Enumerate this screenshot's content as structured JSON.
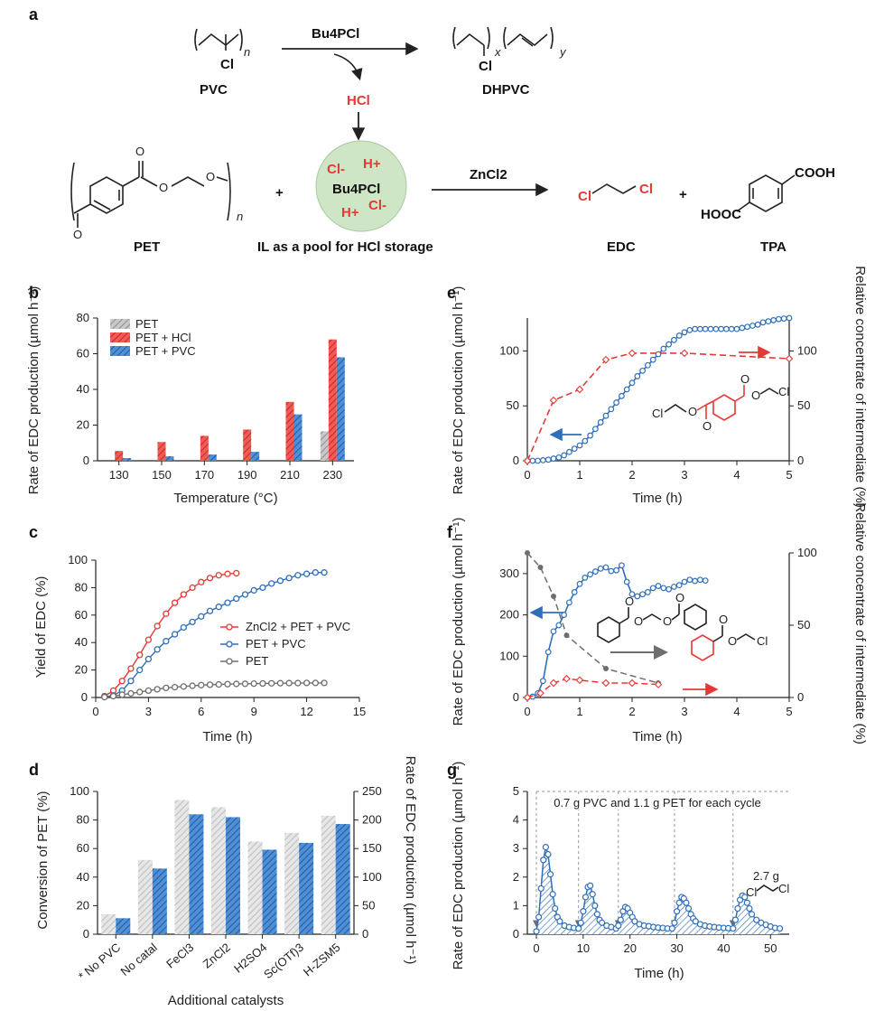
{
  "panel_labels": [
    "a",
    "b",
    "c",
    "d",
    "e",
    "f",
    "g"
  ],
  "scheme": {
    "pvc_label": "PVC",
    "dhpvc_label": "DHPVC",
    "reagent_top": "Bu4PCl",
    "hcl": "HCl",
    "pet_label": "PET",
    "il_center": "Bu4PCl",
    "il_caption": "IL as a pool for HCl storage",
    "zncl2": "ZnCl2",
    "edc_label": "EDC",
    "tpa_label": "TPA",
    "cl": "Cl",
    "h_plus": "H+",
    "cl_minus": "Cl-",
    "cooh": "COOH",
    "hooc": "HOOC",
    "plus": "+",
    "n": "n",
    "x": "x",
    "y": "y",
    "o": "O"
  },
  "colors": {
    "red": "#e53935",
    "blue": "#2f6fba",
    "grey": "#b5b5b5",
    "dark_grey": "#6e6e6e",
    "il_circle": "#cfe6c6"
  },
  "chart_data": [
    {
      "id": "b",
      "type": "bar",
      "xlabel": "Temperature (°C)",
      "ylabel": "Rate of EDC production (µmol h⁻¹)",
      "ylim": [
        0,
        80
      ],
      "yticks": [
        0,
        20,
        40,
        60,
        80
      ],
      "categories": [
        "130",
        "150",
        "170",
        "190",
        "210",
        "230"
      ],
      "series": [
        {
          "name": "PET",
          "color": "grey",
          "values": [
            0,
            0,
            0,
            0,
            0,
            16.5
          ]
        },
        {
          "name": "PET + HCl",
          "color": "red",
          "values": [
            5.5,
            10.5,
            14,
            17.5,
            33,
            68
          ]
        },
        {
          "name": "PET + PVC",
          "color": "blue",
          "values": [
            1.5,
            2.5,
            3.5,
            5,
            26,
            58
          ]
        }
      ],
      "legend": "top-left"
    },
    {
      "id": "c",
      "type": "line",
      "xlabel": "Time (h)",
      "ylabel": "Yield of EDC (%)",
      "xlim": [
        0,
        15
      ],
      "ylim": [
        0,
        100
      ],
      "xticks": [
        0,
        3,
        6,
        9,
        12,
        15
      ],
      "yticks": [
        0,
        20,
        40,
        60,
        80,
        100
      ],
      "series": [
        {
          "name": "ZnCl2 + PET + PVC",
          "color": "red",
          "x": [
            0.5,
            1,
            1.5,
            2,
            2.5,
            3,
            3.5,
            4,
            4.5,
            5,
            5.5,
            6,
            6.5,
            7,
            7.5,
            8
          ],
          "y": [
            1,
            5,
            12,
            21,
            31,
            42,
            52,
            61,
            69,
            75,
            80,
            84,
            87,
            89,
            90,
            90.5
          ]
        },
        {
          "name": "PET + PVC",
          "color": "blue",
          "x": [
            0.5,
            1,
            1.5,
            2,
            2.5,
            3,
            3.5,
            4,
            4.5,
            5,
            5.5,
            6,
            6.5,
            7,
            7.5,
            8,
            8.5,
            9,
            9.5,
            10,
            10.5,
            11,
            11.5,
            12,
            12.5,
            13
          ],
          "y": [
            0.5,
            1.5,
            5,
            12,
            20,
            28,
            35,
            41,
            46,
            51,
            55,
            59,
            63,
            66,
            69,
            72,
            75,
            78,
            80,
            83,
            85,
            87,
            89,
            90,
            91,
            91
          ]
        },
        {
          "name": "PET",
          "color": "dark_grey",
          "x": [
            0.5,
            1,
            1.5,
            2,
            2.5,
            3,
            3.5,
            4,
            4.5,
            5,
            5.5,
            6,
            6.5,
            7,
            7.5,
            8,
            8.5,
            9,
            9.5,
            10,
            10.5,
            11,
            11.5,
            12,
            12.5,
            13
          ],
          "y": [
            0.3,
            1,
            2,
            3,
            4,
            5,
            6,
            7,
            7.5,
            8,
            8.5,
            9,
            9.3,
            9.5,
            9.7,
            9.9,
            10,
            10.1,
            10.2,
            10.3,
            10.4,
            10.5,
            10.5,
            10.6,
            10.6,
            10.6
          ]
        }
      ],
      "legend": "center-right"
    },
    {
      "id": "d",
      "type": "bar",
      "xlabel": "Additional catalysts",
      "ylabel": "Conversion of PET (%)",
      "ylabel_right": "Rate of EDC production (µmol h⁻¹)",
      "ylim": [
        0,
        100
      ],
      "ylim_right": [
        0,
        250
      ],
      "yticks": [
        0,
        20,
        40,
        60,
        80,
        100
      ],
      "yticks_right": [
        0,
        50,
        100,
        150,
        200,
        250
      ],
      "categories": [
        "No PVC",
        "No catal",
        "FeCl3",
        "ZnCl2",
        "H2SO4",
        "Sc(OTf)3",
        "H-ZSM5"
      ],
      "category_note": "*",
      "series": [
        {
          "name": "Conversion of PET",
          "axis": "left",
          "color": "grey",
          "values": [
            14,
            52,
            94,
            89,
            65,
            71,
            83
          ]
        },
        {
          "name": "Rate of EDC production",
          "axis": "right",
          "color": "blue",
          "values": [
            28,
            115,
            210,
            205,
            148,
            160,
            193
          ]
        }
      ]
    },
    {
      "id": "e",
      "type": "line",
      "xlabel": "Time (h)",
      "ylabel": "Rate of EDC production (µmol h⁻¹)",
      "ylabel_right": "Relative concentrate of intermediate (%)",
      "xlim": [
        0,
        5
      ],
      "ylim": [
        0,
        130
      ],
      "ylim_right": [
        0,
        130
      ],
      "xticks": [
        0,
        1,
        2,
        3,
        4,
        5
      ],
      "yticks": [
        0,
        50,
        100
      ],
      "yticks_right": [
        0,
        50,
        100
      ],
      "series": [
        {
          "name": "Rate of EDC production",
          "axis": "left",
          "color": "blue",
          "style": "solid",
          "x": [
            0,
            0.1,
            0.2,
            0.3,
            0.4,
            0.5,
            0.6,
            0.7,
            0.8,
            0.9,
            1.0,
            1.1,
            1.2,
            1.3,
            1.4,
            1.5,
            1.6,
            1.7,
            1.8,
            1.9,
            2.0,
            2.1,
            2.2,
            2.3,
            2.4,
            2.5,
            2.6,
            2.7,
            2.8,
            2.9,
            3.0,
            3.1,
            3.2,
            3.3,
            3.4,
            3.5,
            3.6,
            3.7,
            3.8,
            3.9,
            4.0,
            4.1,
            4.2,
            4.3,
            4.4,
            4.5,
            4.6,
            4.7,
            4.8,
            4.9,
            5.0
          ],
          "y": [
            0,
            0,
            0,
            0.5,
            1,
            2,
            3,
            5,
            8,
            11,
            14,
            18,
            23,
            29,
            35,
            41,
            47,
            53,
            59,
            65,
            71,
            77,
            82,
            87,
            92,
            97,
            102,
            106,
            110,
            114,
            117,
            119,
            120,
            120,
            120,
            120,
            120,
            120,
            120,
            120,
            120,
            121,
            122,
            123,
            124,
            126,
            127,
            128,
            129,
            129.5,
            130
          ]
        },
        {
          "name": "Relative concentrate of intermediate",
          "axis": "right",
          "color": "red",
          "style": "dashed",
          "x": [
            0,
            0.5,
            1.0,
            1.5,
            2.0,
            3.0,
            5.0
          ],
          "y": [
            0,
            55,
            65,
            92,
            98,
            98,
            93
          ]
        }
      ]
    },
    {
      "id": "f",
      "type": "line",
      "xlabel": "Time (h)",
      "ylabel": "Rate of EDC production (µmol h⁻¹)",
      "ylabel_right": "Relative concentrate of intermediate (%)",
      "xlim": [
        0,
        5
      ],
      "ylim": [
        0,
        350
      ],
      "ylim_right": [
        0,
        100
      ],
      "xticks": [
        0,
        1,
        2,
        3,
        4,
        5
      ],
      "yticks": [
        0,
        100,
        200,
        300
      ],
      "yticks_right": [
        0,
        50,
        100
      ],
      "series": [
        {
          "name": "Rate of EDC production",
          "axis": "left",
          "color": "blue",
          "style": "solid",
          "x": [
            0,
            0.1,
            0.2,
            0.3,
            0.4,
            0.5,
            0.6,
            0.7,
            0.8,
            0.9,
            1.0,
            1.1,
            1.2,
            1.3,
            1.4,
            1.5,
            1.6,
            1.7,
            1.8,
            1.9,
            2.0,
            2.1,
            2.2,
            2.3,
            2.4,
            2.5,
            2.6,
            2.7,
            2.8,
            2.9,
            3.0,
            3.1,
            3.2,
            3.3,
            3.4
          ],
          "y": [
            0,
            2,
            10,
            40,
            110,
            160,
            175,
            200,
            230,
            255,
            275,
            290,
            298,
            305,
            312,
            315,
            306,
            308,
            320,
            280,
            250,
            245,
            250,
            255,
            265,
            270,
            265,
            262,
            268,
            272,
            280,
            285,
            282,
            285,
            283
          ]
        },
        {
          "name": "Relative concentrate of intermediate (dibenzoate)",
          "axis": "right",
          "color": "dark_grey",
          "style": "dashed",
          "x": [
            0,
            0.25,
            0.5,
            0.75,
            1.5,
            2.5
          ],
          "y": [
            100,
            90,
            70,
            43,
            20,
            10
          ]
        },
        {
          "name": "Relative concentrate of intermediate (chloroethyl benzoate)",
          "axis": "right",
          "color": "red",
          "style": "dashed",
          "x": [
            0,
            0.25,
            0.5,
            0.75,
            1.0,
            1.5,
            2.0,
            2.5
          ],
          "y": [
            0,
            3,
            10,
            13,
            12,
            10,
            10,
            9
          ]
        }
      ]
    },
    {
      "id": "g",
      "type": "area",
      "xlabel": "Time (h)",
      "ylabel": "Rate of EDC production (µmol h⁻¹)",
      "xlim": [
        0,
        54
      ],
      "ylim": [
        0,
        5
      ],
      "xticks": [
        0,
        10,
        20,
        30,
        40,
        50
      ],
      "yticks": [
        0,
        1,
        2,
        3,
        4,
        5
      ],
      "cycle_starts": [
        0,
        9,
        17.5,
        29.5,
        42
      ],
      "annotations": [
        "0.7 g PVC and 1.1 g PET for each cycle",
        "2.7 g"
      ],
      "series": [
        {
          "name": "Rate of EDC production",
          "color": "blue",
          "x": [
            0,
            0.5,
            1,
            1.5,
            2,
            2.5,
            3,
            3.5,
            4,
            4.5,
            5,
            6,
            7,
            8,
            9,
            9.5,
            10,
            10.5,
            11,
            11.5,
            12,
            12.5,
            13,
            13.5,
            14,
            15,
            16,
            17,
            17.5,
            18,
            18.5,
            19,
            19.5,
            20,
            20.5,
            21,
            22,
            23,
            24,
            25,
            26,
            27,
            28,
            29,
            29.5,
            30,
            30.5,
            31,
            31.5,
            32,
            32.5,
            33,
            33.5,
            34,
            35,
            36,
            37,
            38,
            39,
            40,
            41,
            42,
            42.5,
            43,
            43.5,
            44,
            44.5,
            45,
            45.5,
            46,
            47,
            48,
            49,
            50,
            51,
            52
          ],
          "y": [
            0.1,
            0.6,
            1.6,
            2.6,
            3.05,
            2.8,
            2.1,
            1.4,
            0.9,
            0.6,
            0.45,
            0.3,
            0.25,
            0.22,
            0.2,
            0.4,
            0.8,
            1.3,
            1.65,
            1.7,
            1.4,
            1.0,
            0.7,
            0.5,
            0.4,
            0.3,
            0.25,
            0.2,
            0.3,
            0.5,
            0.8,
            0.95,
            0.9,
            0.75,
            0.6,
            0.45,
            0.35,
            0.3,
            0.28,
            0.25,
            0.23,
            0.22,
            0.2,
            0.2,
            0.4,
            0.8,
            1.1,
            1.3,
            1.25,
            1.1,
            0.9,
            0.7,
            0.55,
            0.45,
            0.35,
            0.3,
            0.27,
            0.25,
            0.23,
            0.22,
            0.21,
            0.2,
            0.5,
            0.9,
            1.2,
            1.35,
            1.3,
            1.1,
            0.9,
            0.7,
            0.5,
            0.4,
            0.33,
            0.27,
            0.22,
            0.2
          ]
        }
      ]
    }
  ]
}
